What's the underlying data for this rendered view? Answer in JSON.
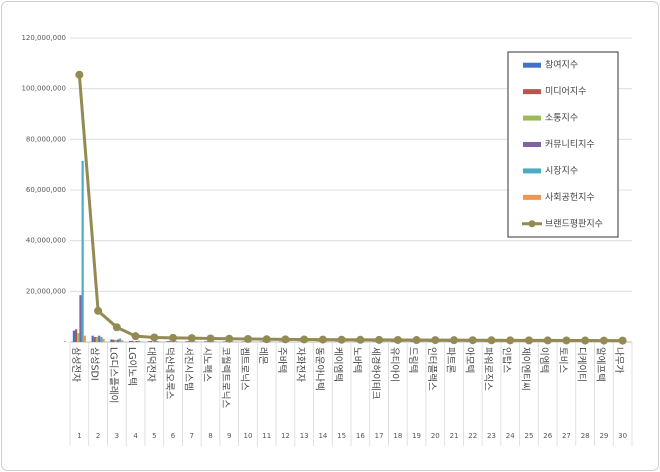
{
  "chart_data": {
    "type": "bar",
    "categories": [
      "삼성전자",
      "삼성SDI",
      "LG디스플레이",
      "LG이노텍",
      "대덕전자",
      "덕산네오룩스",
      "서진시스템",
      "시노펙스",
      "코월렉트로닉스",
      "켐트로닉스",
      "레몬",
      "주바텍",
      "자화전자",
      "동운아나텍",
      "케이엠텍",
      "노바텍",
      "세경하이테크",
      "유티아이",
      "드림텍",
      "인터플렉스",
      "파트론",
      "아모텍",
      "파워로직스",
      "인탑스",
      "제이엔티씨",
      "이엠텍",
      "토비스",
      "디케이티",
      "알에프텍",
      "나무가"
    ],
    "ranks": [
      1,
      2,
      3,
      4,
      5,
      6,
      7,
      8,
      9,
      10,
      11,
      12,
      13,
      14,
      15,
      16,
      17,
      18,
      19,
      20,
      21,
      22,
      23,
      24,
      25,
      26,
      27,
      28,
      29,
      30
    ],
    "ylim": [
      0,
      120000000
    ],
    "yticks": [
      {
        "value": 0,
        "label": "-"
      },
      {
        "value": 20000000,
        "label": "20,000,000"
      },
      {
        "value": 40000000,
        "label": "40,000,000"
      },
      {
        "value": 60000000,
        "label": "60,000,000"
      },
      {
        "value": 80000000,
        "label": "80,000,000"
      },
      {
        "value": 100000000,
        "label": "100,000,000"
      },
      {
        "value": 120000000,
        "label": "120,000,000"
      }
    ],
    "grid": true,
    "legend": "upper right",
    "series": [
      {
        "name": "참여지수",
        "color": "#4472c4",
        "values": [
          4500000,
          2500000,
          1000000,
          400000,
          300000,
          300000,
          250000,
          250000,
          200000,
          200000,
          200000,
          200000,
          150000,
          150000,
          150000,
          150000,
          150000,
          150000,
          140000,
          140000,
          130000,
          130000,
          120000,
          120000,
          120000,
          110000,
          110000,
          100000,
          100000,
          100000
        ]
      },
      {
        "name": "미디어지수",
        "color": "#c0504d",
        "values": [
          5000000,
          2000000,
          900000,
          500000,
          400000,
          350000,
          350000,
          300000,
          300000,
          250000,
          250000,
          200000,
          200000,
          200000,
          200000,
          200000,
          180000,
          170000,
          170000,
          160000,
          160000,
          150000,
          150000,
          150000,
          140000,
          140000,
          130000,
          130000,
          120000,
          120000
        ]
      },
      {
        "name": "소통지수",
        "color": "#9bbb59",
        "values": [
          3500000,
          2000000,
          800000,
          300000,
          200000,
          200000,
          200000,
          150000,
          150000,
          150000,
          100000,
          100000,
          100000,
          100000,
          100000,
          70000,
          70000,
          70000,
          70000,
          60000,
          60000,
          60000,
          60000,
          50000,
          50000,
          50000,
          50000,
          50000,
          50000,
          40000
        ]
      },
      {
        "name": "커뮤니티지수",
        "color": "#8064a2",
        "values": [
          18500000,
          2500000,
          1000000,
          400000,
          300000,
          300000,
          250000,
          250000,
          250000,
          200000,
          200000,
          200000,
          200000,
          150000,
          150000,
          150000,
          150000,
          150000,
          140000,
          140000,
          130000,
          130000,
          120000,
          120000,
          120000,
          110000,
          110000,
          110000,
          100000,
          100000
        ]
      },
      {
        "name": "시장지수",
        "color": "#4bacc6",
        "values": [
          71500000,
          2000000,
          1400000,
          500000,
          400000,
          300000,
          300000,
          300000,
          250000,
          250000,
          250000,
          250000,
          250000,
          250000,
          200000,
          200000,
          200000,
          180000,
          180000,
          170000,
          160000,
          160000,
          160000,
          150000,
          140000,
          140000,
          140000,
          130000,
          130000,
          120000
        ]
      },
      {
        "name": "사회공헌지수",
        "color": "#f79646",
        "values": [
          2500000,
          1300000,
          700000,
          200000,
          200000,
          200000,
          200000,
          150000,
          150000,
          150000,
          100000,
          100000,
          100000,
          100000,
          100000,
          100000,
          90000,
          90000,
          80000,
          80000,
          80000,
          70000,
          70000,
          70000,
          70000,
          70000,
          60000,
          60000,
          60000,
          60000
        ]
      },
      {
        "name": "브랜드평판지수",
        "type": "line",
        "color": "#948a54",
        "values": [
          105500000,
          12300000,
          5800000,
          2300000,
          1800000,
          1650000,
          1550000,
          1400000,
          1300000,
          1200000,
          1100000,
          1050000,
          1000000,
          950000,
          900000,
          870000,
          840000,
          810000,
          780000,
          750000,
          720000,
          700000,
          680000,
          660000,
          640000,
          620000,
          600000,
          580000,
          560000,
          540000
        ]
      }
    ]
  }
}
